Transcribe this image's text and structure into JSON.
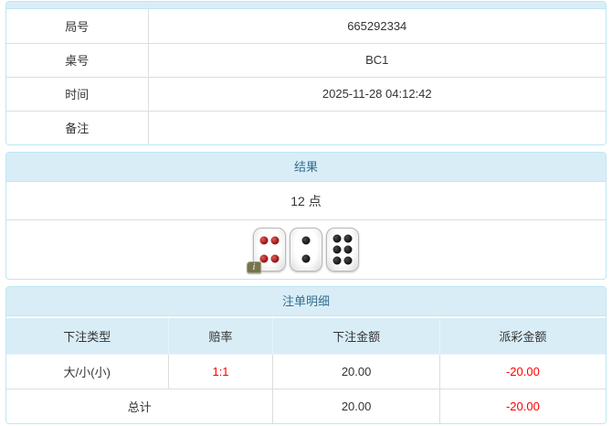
{
  "colors": {
    "panel_header_bg": "#d9edf7",
    "panel_border": "#bce8f1",
    "heading_text": "#31708f",
    "inner_border": "#dddddd",
    "body_text": "#333333",
    "negative_text": "#ff0000",
    "red_die_pip": "#a31414",
    "black_die_pip": "#101010",
    "info_badge_bg": "#75744f"
  },
  "game_info": {
    "rows": [
      {
        "label": "局号",
        "value": "665292334"
      },
      {
        "label": "桌号",
        "value": "BC1"
      },
      {
        "label": "时间",
        "value": "2025-11-28 04:12:42"
      },
      {
        "label": "备注",
        "value": ""
      }
    ]
  },
  "result": {
    "title": "结果",
    "points": "12 点",
    "dice": [
      {
        "value": 4,
        "color": "red"
      },
      {
        "value": 2,
        "color": "black"
      },
      {
        "value": 6,
        "color": "black"
      }
    ],
    "info_badge": "i"
  },
  "bet_details": {
    "title": "注单明细",
    "columns": [
      "下注类型",
      "赔率",
      "下注金额",
      "派彩金额"
    ],
    "rows": [
      {
        "bet_type": "大/小(小)",
        "odds": "1:1",
        "bet_amount": "20.00",
        "payout": "-20.00"
      }
    ],
    "total": {
      "label": "总计",
      "bet_amount": "20.00",
      "payout": "-20.00"
    }
  }
}
